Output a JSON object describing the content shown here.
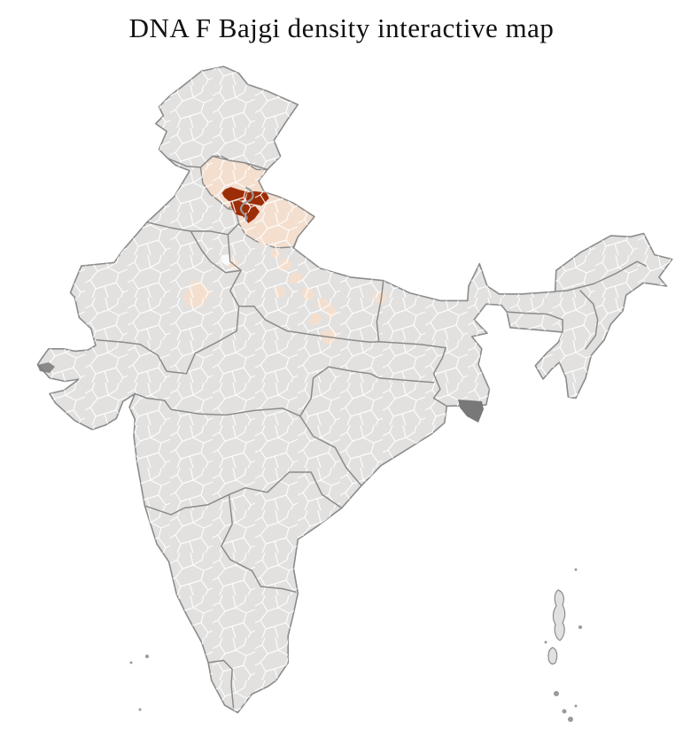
{
  "title": "DNA F Bajgi density interactive map",
  "map": {
    "region": "India",
    "unit": "districts",
    "colors": {
      "background": "#ffffff",
      "district_fill": "#e2e1e0",
      "district_border": "#ffffff",
      "state_border": "#8b8b8b",
      "density_low": "#f4dfcf",
      "density_high": "#9c2d06",
      "marsh_dark": "#787878",
      "island_dot": "#9a9a9a",
      "title_color": "#111111"
    },
    "choropleth": {
      "metric": "DNA F Bajgi density",
      "classes": [
        {
          "level": "none",
          "color": "#e2e1e0"
        },
        {
          "level": "low",
          "color": "#f4dfcf"
        },
        {
          "level": "high",
          "color": "#9c2d06"
        }
      ]
    }
  }
}
